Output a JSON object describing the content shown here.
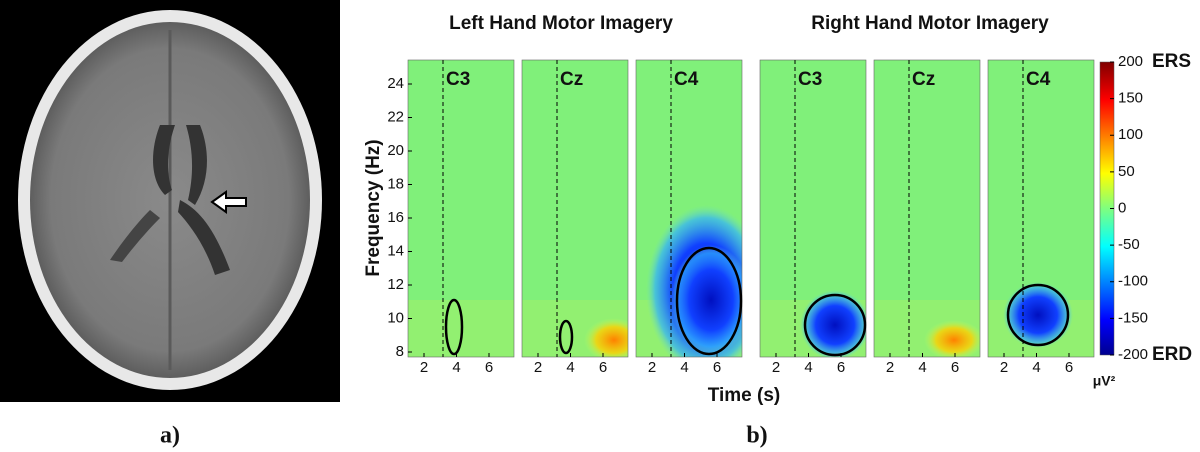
{
  "figure": {
    "panel_labels": [
      "a)",
      "b)"
    ],
    "groups": [
      {
        "title": "Left Hand Motor Imagery",
        "channels": [
          "C3",
          "Cz",
          "C4"
        ]
      },
      {
        "title": "Right Hand Motor Imagery",
        "channels": [
          "C3",
          "Cz",
          "C4"
        ]
      }
    ],
    "y_axis": {
      "label": "Frequency (Hz)",
      "ticks": [
        8,
        10,
        12,
        14,
        16,
        18,
        20,
        22,
        24
      ]
    },
    "x_axis": {
      "label": "Time (s)",
      "ticks": [
        2,
        4,
        6
      ]
    },
    "colorbar": {
      "ticks": [
        -200,
        -150,
        -100,
        -50,
        0,
        50,
        100,
        150,
        200
      ],
      "top_label": "ERS",
      "bottom_label": "ERD",
      "unit": "μV²"
    }
  }
}
